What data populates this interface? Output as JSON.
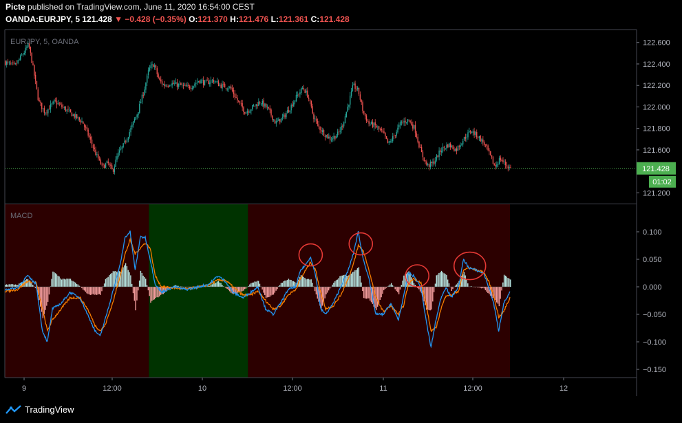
{
  "header": {
    "publisher": "Picte",
    "published_text": "published on TradingView.com, June 11, 2020 16:54:00 CEST",
    "symbol_interval": "OANDA:EURJPY, 5",
    "last": "121.428",
    "change": "−0.428 (−0.35%)",
    "o_label": "O:",
    "o": "121.370",
    "h_label": "H:",
    "h": "121.476",
    "l_label": "L:",
    "l": "121.361",
    "c_label": "C:",
    "c": "121.428"
  },
  "footer": {
    "brand": "TradingView"
  },
  "colors": {
    "up": "#26a69a",
    "down": "#ef5350",
    "macd_line": "#2196f3",
    "signal_line": "#f57c00",
    "hist_pos": "#b2dfdb",
    "hist_neg": "#ef9a9a",
    "bg_red": "#2c0000",
    "bg_green": "#003300",
    "price_label": "#4caf50"
  },
  "chart_data": [
    {
      "type": "candlestick",
      "title": "EURJPY, 5, OANDA",
      "ylim": [
        121.1,
        122.72
      ],
      "yticks": [
        "122.600",
        "122.400",
        "122.200",
        "122.000",
        "121.800",
        "121.600",
        "121.400",
        "121.200"
      ],
      "last_price": 121.428,
      "last_price_label": "121.428",
      "countdown_label": "01:02",
      "x_ticks": [
        "9",
        "12:00",
        "10",
        "12:00",
        "11",
        "12:00",
        "12"
      ],
      "path_points": [
        [
          0,
          122.42
        ],
        [
          3,
          122.4
        ],
        [
          8,
          122.38
        ],
        [
          12,
          122.45
        ],
        [
          16,
          122.52
        ],
        [
          19,
          122.58
        ],
        [
          22,
          122.4
        ],
        [
          27,
          122.05
        ],
        [
          32,
          121.95
        ],
        [
          40,
          122.05
        ],
        [
          48,
          121.98
        ],
        [
          55,
          121.92
        ],
        [
          62,
          121.86
        ],
        [
          68,
          121.7
        ],
        [
          73,
          121.55
        ],
        [
          78,
          121.44
        ],
        [
          82,
          121.48
        ],
        [
          86,
          121.4
        ],
        [
          90,
          121.55
        ],
        [
          95,
          121.65
        ],
        [
          100,
          121.78
        ],
        [
          106,
          121.95
        ],
        [
          111,
          122.15
        ],
        [
          115,
          122.35
        ],
        [
          119,
          122.4
        ],
        [
          123,
          122.25
        ],
        [
          127,
          122.2
        ],
        [
          132,
          122.22
        ],
        [
          140,
          122.2
        ],
        [
          146,
          122.18
        ],
        [
          150,
          122.2
        ],
        [
          155,
          122.25
        ],
        [
          160,
          122.22
        ],
        [
          166,
          122.25
        ],
        [
          172,
          122.2
        ],
        [
          180,
          122.18
        ],
        [
          186,
          122.05
        ],
        [
          192,
          121.95
        ],
        [
          198,
          122.0
        ],
        [
          204,
          122.05
        ],
        [
          210,
          121.98
        ],
        [
          216,
          121.85
        ],
        [
          222,
          121.9
        ],
        [
          228,
          122.0
        ],
        [
          233,
          122.1
        ],
        [
          238,
          122.18
        ],
        [
          242,
          122.1
        ],
        [
          246,
          121.92
        ],
        [
          250,
          121.82
        ],
        [
          255,
          121.75
        ],
        [
          260,
          121.7
        ],
        [
          266,
          121.75
        ],
        [
          270,
          121.85
        ],
        [
          274,
          122.02
        ],
        [
          278,
          122.2
        ],
        [
          282,
          122.15
        ],
        [
          286,
          121.95
        ],
        [
          290,
          121.85
        ],
        [
          296,
          121.82
        ],
        [
          302,
          121.75
        ],
        [
          306,
          121.65
        ],
        [
          310,
          121.72
        ],
        [
          316,
          121.85
        ],
        [
          322,
          121.88
        ],
        [
          327,
          121.8
        ],
        [
          332,
          121.58
        ],
        [
          337,
          121.45
        ],
        [
          342,
          121.48
        ],
        [
          348,
          121.6
        ],
        [
          354,
          121.65
        ],
        [
          360,
          121.6
        ],
        [
          366,
          121.7
        ],
        [
          372,
          121.78
        ],
        [
          378,
          121.72
        ],
        [
          383,
          121.65
        ],
        [
          387,
          121.55
        ],
        [
          391,
          121.44
        ],
        [
          395,
          121.52
        ],
        [
          399,
          121.47
        ],
        [
          403,
          121.43
        ]
      ]
    },
    {
      "type": "line",
      "title": "MACD",
      "ylim": [
        -0.165,
        0.15
      ],
      "yticks": [
        "0.100",
        "0.050",
        "0.000",
        "−0.050",
        "−0.100",
        "−0.150"
      ],
      "background_zones": [
        {
          "from": 0,
          "to": 115,
          "color": "red"
        },
        {
          "from": 115,
          "to": 194,
          "color": "green"
        },
        {
          "from": 194,
          "to": 403,
          "color": "red"
        }
      ],
      "highlight_circles": [
        {
          "x": 244,
          "y": 0.058
        },
        {
          "x": 284,
          "y": 0.078
        },
        {
          "x": 329,
          "y": 0.02
        },
        {
          "x": 371,
          "y": 0.038
        }
      ],
      "series": [
        {
          "role": "macd",
          "points": [
            [
              0,
              -0.005
            ],
            [
              10,
              -0.002
            ],
            [
              18,
              0.02
            ],
            [
              25,
              0.005
            ],
            [
              30,
              -0.08
            ],
            [
              34,
              -0.1
            ],
            [
              38,
              -0.04
            ],
            [
              45,
              -0.03
            ],
            [
              52,
              -0.01
            ],
            [
              60,
              -0.02
            ],
            [
              66,
              -0.05
            ],
            [
              72,
              -0.08
            ],
            [
              76,
              -0.09
            ],
            [
              80,
              -0.06
            ],
            [
              86,
              -0.01
            ],
            [
              92,
              0.04
            ],
            [
              96,
              0.09
            ],
            [
              100,
              0.1
            ],
            [
              104,
              0.03
            ],
            [
              108,
              0.09
            ],
            [
              112,
              0.09
            ],
            [
              116,
              0.05
            ],
            [
              120,
              0.005
            ],
            [
              125,
              -0.01
            ],
            [
              135,
              0.0
            ],
            [
              145,
              -0.005
            ],
            [
              155,
              0.0
            ],
            [
              163,
              0.005
            ],
            [
              170,
              0.02
            ],
            [
              176,
              0.01
            ],
            [
              182,
              -0.01
            ],
            [
              190,
              -0.02
            ],
            [
              196,
              -0.01
            ],
            [
              202,
              0.0
            ],
            [
              208,
              -0.04
            ],
            [
              214,
              -0.05
            ],
            [
              220,
              -0.03
            ],
            [
              226,
              -0.005
            ],
            [
              232,
              0.0
            ],
            [
              236,
              0.03
            ],
            [
              240,
              0.04
            ],
            [
              244,
              0.055
            ],
            [
              248,
              0.02
            ],
            [
              252,
              -0.04
            ],
            [
              256,
              -0.05
            ],
            [
              262,
              -0.03
            ],
            [
              268,
              0.0
            ],
            [
              274,
              0.03
            ],
            [
              278,
              0.06
            ],
            [
              282,
              0.1
            ],
            [
              286,
              0.05
            ],
            [
              290,
              0.02
            ],
            [
              296,
              -0.05
            ],
            [
              302,
              -0.05
            ],
            [
              308,
              -0.03
            ],
            [
              314,
              -0.06
            ],
            [
              318,
              -0.02
            ],
            [
              322,
              0.025
            ],
            [
              326,
              0.02
            ],
            [
              332,
              0.0
            ],
            [
              336,
              -0.06
            ],
            [
              340,
              -0.11
            ],
            [
              344,
              -0.06
            ],
            [
              348,
              -0.02
            ],
            [
              352,
              0.0
            ],
            [
              356,
              -0.02
            ],
            [
              362,
              0.0
            ],
            [
              366,
              0.05
            ],
            [
              370,
              0.035
            ],
            [
              376,
              0.03
            ],
            [
              382,
              0.025
            ],
            [
              386,
              0.0
            ],
            [
              390,
              -0.03
            ],
            [
              394,
              -0.08
            ],
            [
              398,
              -0.03
            ],
            [
              403,
              -0.01
            ]
          ]
        },
        {
          "role": "signal",
          "points": [
            [
              0,
              -0.008
            ],
            [
              10,
              -0.005
            ],
            [
              18,
              0.01
            ],
            [
              25,
              0.008
            ],
            [
              30,
              -0.04
            ],
            [
              34,
              -0.08
            ],
            [
              38,
              -0.06
            ],
            [
              45,
              -0.04
            ],
            [
              52,
              -0.02
            ],
            [
              60,
              -0.02
            ],
            [
              66,
              -0.04
            ],
            [
              72,
              -0.07
            ],
            [
              76,
              -0.08
            ],
            [
              80,
              -0.07
            ],
            [
              86,
              -0.03
            ],
            [
              92,
              0.02
            ],
            [
              96,
              0.06
            ],
            [
              100,
              0.085
            ],
            [
              104,
              0.06
            ],
            [
              108,
              0.07
            ],
            [
              112,
              0.08
            ],
            [
              116,
              0.07
            ],
            [
              120,
              0.02
            ],
            [
              125,
              0.0
            ],
            [
              135,
              -0.002
            ],
            [
              145,
              -0.004
            ],
            [
              155,
              0.0
            ],
            [
              163,
              0.004
            ],
            [
              170,
              0.012
            ],
            [
              176,
              0.012
            ],
            [
              182,
              0.0
            ],
            [
              190,
              -0.015
            ],
            [
              196,
              -0.015
            ],
            [
              202,
              -0.008
            ],
            [
              208,
              -0.025
            ],
            [
              214,
              -0.04
            ],
            [
              220,
              -0.035
            ],
            [
              226,
              -0.015
            ],
            [
              232,
              -0.005
            ],
            [
              236,
              0.015
            ],
            [
              240,
              0.03
            ],
            [
              244,
              0.045
            ],
            [
              248,
              0.03
            ],
            [
              252,
              -0.01
            ],
            [
              256,
              -0.04
            ],
            [
              262,
              -0.035
            ],
            [
              268,
              -0.015
            ],
            [
              274,
              0.015
            ],
            [
              278,
              0.04
            ],
            [
              282,
              0.075
            ],
            [
              286,
              0.065
            ],
            [
              290,
              0.035
            ],
            [
              296,
              -0.02
            ],
            [
              302,
              -0.045
            ],
            [
              308,
              -0.035
            ],
            [
              314,
              -0.05
            ],
            [
              318,
              -0.035
            ],
            [
              322,
              0.005
            ],
            [
              326,
              0.015
            ],
            [
              332,
              0.008
            ],
            [
              336,
              -0.03
            ],
            [
              340,
              -0.08
            ],
            [
              344,
              -0.075
            ],
            [
              348,
              -0.04
            ],
            [
              352,
              -0.015
            ],
            [
              356,
              -0.015
            ],
            [
              362,
              -0.008
            ],
            [
              366,
              0.03
            ],
            [
              370,
              0.035
            ],
            [
              376,
              0.03
            ],
            [
              382,
              0.027
            ],
            [
              386,
              0.01
            ],
            [
              390,
              -0.015
            ],
            [
              394,
              -0.055
            ],
            [
              398,
              -0.045
            ],
            [
              403,
              -0.02
            ]
          ]
        }
      ]
    }
  ]
}
